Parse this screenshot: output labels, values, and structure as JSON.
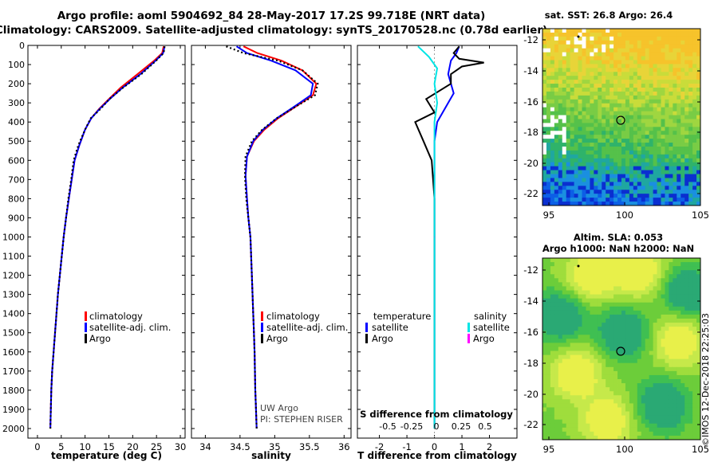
{
  "header": {
    "title_line1": "Argo profile: aoml 5904692_84 28-May-2017 17.2S 99.718E (NRT data)",
    "title_line2": "Climatology: CARS2009. Satellite-adjusted climatology: synTS_20170528.nc (0.78d earlier)"
  },
  "colors": {
    "climatology": "#ff0000",
    "satellite": "#0000ff",
    "argo": "#000000",
    "sat_cyan": "#00e5e5",
    "argo_magenta": "#ff00ff"
  },
  "depth_axis": {
    "ylim": [
      0,
      2050
    ],
    "ticks": [
      0,
      100,
      200,
      300,
      400,
      500,
      600,
      700,
      800,
      900,
      1000,
      1100,
      1200,
      1300,
      1400,
      1500,
      1600,
      1700,
      1800,
      1900,
      2000
    ]
  },
  "chart_data": [
    {
      "type": "line",
      "id": "temperature",
      "xlabel": "temperature (deg C)",
      "xlim": [
        -2,
        31
      ],
      "xticks": [
        0,
        5,
        10,
        15,
        20,
        25,
        30
      ],
      "ylabel": "depth",
      "ylim": [
        0,
        2050
      ],
      "legend": {
        "placement": "lower-center",
        "entries": [
          "climatology",
          "satellite-adj. clim.",
          "Argo"
        ]
      },
      "series": [
        {
          "name": "climatology",
          "color": "#ff0000",
          "x": [
            26.5,
            26.2,
            24.5,
            21,
            17.5,
            15,
            13,
            11.3,
            10,
            8.8,
            7.8,
            7.2,
            6.6,
            6,
            5.5,
            5.1,
            4.7,
            4.3,
            4,
            3.7,
            3.4,
            3.1,
            2.9,
            2.7
          ],
          "y": [
            5,
            40,
            80,
            150,
            220,
            280,
            330,
            380,
            440,
            520,
            600,
            700,
            800,
            900,
            1000,
            1100,
            1200,
            1300,
            1400,
            1500,
            1600,
            1700,
            1800,
            2000
          ]
        },
        {
          "name": "satellite-adj. clim.",
          "color": "#0000ff",
          "x": [
            26.7,
            26.4,
            24.8,
            21.6,
            17.9,
            15.2,
            13.1,
            11.3,
            10,
            8.8,
            7.8,
            7.2,
            6.6,
            6,
            5.5,
            5.1,
            4.7,
            4.3,
            4,
            3.7,
            3.4,
            3.1,
            2.9,
            2.7
          ],
          "y": [
            5,
            40,
            80,
            150,
            220,
            280,
            330,
            380,
            440,
            520,
            600,
            700,
            800,
            900,
            1000,
            1100,
            1200,
            1300,
            1400,
            1500,
            1600,
            1700,
            1800,
            2000
          ]
        },
        {
          "name": "Argo",
          "color": "#000000",
          "x": [
            26.7,
            26.5,
            24.9,
            21.8,
            18,
            15.1,
            13.3,
            11.2,
            10,
            8.6,
            7.6,
            7.1,
            6.5,
            6,
            5.5,
            5.1,
            4.7,
            4.3,
            4,
            3.7,
            3.4,
            3.1,
            2.9,
            2.7
          ],
          "y": [
            5,
            40,
            80,
            150,
            220,
            280,
            330,
            380,
            440,
            520,
            600,
            700,
            800,
            900,
            1000,
            1100,
            1200,
            1300,
            1400,
            1500,
            1600,
            1700,
            1800,
            2000
          ]
        }
      ]
    },
    {
      "type": "line",
      "id": "salinity",
      "xlabel": "salinity",
      "xlim": [
        33.8,
        36.1
      ],
      "xticks": [
        34,
        34.5,
        35,
        35.5,
        36
      ],
      "ylim": [
        0,
        2050
      ],
      "legend": {
        "placement": "lower-center",
        "entries": [
          "climatology",
          "satellite-adj. clim.",
          "Argo"
        ]
      },
      "annotations": [
        "UW Argo",
        "PI: STEPHEN RISER"
      ],
      "series": [
        {
          "name": "climatology",
          "color": "#ff0000",
          "x": [
            34.55,
            34.75,
            35.1,
            35.4,
            35.6,
            35.55,
            35.3,
            35.05,
            34.85,
            34.7,
            34.6,
            34.58,
            34.6,
            34.62,
            34.65,
            34.67,
            34.69,
            34.7,
            34.71,
            34.72,
            34.73,
            34.74
          ],
          "y": [
            5,
            40,
            80,
            130,
            200,
            260,
            320,
            380,
            440,
            500,
            580,
            680,
            800,
            900,
            1000,
            1200,
            1400,
            1500,
            1600,
            1800,
            1900,
            2000
          ]
        },
        {
          "name": "satellite-adj. clim.",
          "color": "#0000ff",
          "x": [
            34.45,
            34.6,
            34.95,
            35.3,
            35.55,
            35.52,
            35.28,
            35.03,
            34.83,
            34.69,
            34.6,
            34.58,
            34.6,
            34.62,
            34.65,
            34.67,
            34.69,
            34.7,
            34.71,
            34.72,
            34.73,
            34.74
          ],
          "y": [
            5,
            40,
            80,
            130,
            200,
            260,
            320,
            380,
            440,
            500,
            580,
            680,
            800,
            900,
            1000,
            1200,
            1400,
            1500,
            1600,
            1800,
            1900,
            2000
          ]
        },
        {
          "name": "Argo",
          "color": "#000000",
          "x": [
            34.3,
            34.55,
            35.05,
            35.4,
            35.62,
            35.58,
            35.3,
            35.03,
            34.82,
            34.67,
            34.58,
            34.57,
            34.59,
            34.62,
            34.65,
            34.67,
            34.69,
            34.7,
            34.71,
            34.72,
            34.73,
            34.74
          ],
          "y": [
            5,
            40,
            80,
            130,
            200,
            260,
            320,
            380,
            440,
            500,
            580,
            680,
            800,
            900,
            1000,
            1200,
            1400,
            1500,
            1600,
            1800,
            1900,
            2000
          ]
        }
      ]
    },
    {
      "type": "line",
      "id": "difference",
      "xlabel": "T difference from climatology",
      "xlim": [
        -2.8,
        3.0
      ],
      "xticks": [
        -2,
        -1,
        0,
        1,
        2
      ],
      "x2label": "S difference from climatology",
      "x2ticks": [
        "-0.5",
        "-0.25",
        "0",
        "0.25",
        "0.5"
      ],
      "ylim": [
        0,
        2050
      ],
      "legend": {
        "placement": "lower-center",
        "groups": [
          {
            "heading": "temperature",
            "entries": [
              "satellite",
              "Argo"
            ]
          },
          {
            "heading": "salinity",
            "entries": [
              "satellite",
              "Argo"
            ]
          }
        ]
      },
      "series": [
        {
          "name": "temperature satellite",
          "color": "#0000ff",
          "x": [
            0.9,
            0.8,
            0.6,
            0.5,
            0.7,
            0.5,
            0.1,
            0,
            0,
            0,
            0
          ],
          "y": [
            5,
            40,
            80,
            150,
            250,
            300,
            400,
            500,
            700,
            1000,
            2000
          ]
        },
        {
          "name": "temperature Argo",
          "color": "#000000",
          "x": [
            0.9,
            0.7,
            0.9,
            1.8,
            1.0,
            0.6,
            0.6,
            -0.3,
            0,
            -0.7,
            -0.4,
            -0.1,
            0,
            0,
            0
          ],
          "y": [
            5,
            40,
            70,
            90,
            110,
            150,
            200,
            280,
            350,
            400,
            500,
            600,
            800,
            1000,
            2000
          ]
        },
        {
          "name": "salinity satellite",
          "color": "#00e5e5",
          "x": [
            -0.6,
            -0.2,
            0.1,
            0,
            0.1,
            0,
            0
          ],
          "y": [
            5,
            60,
            120,
            200,
            300,
            400,
            2000
          ]
        },
        {
          "name": "salinity Argo",
          "color": "#ff00ff",
          "x": [
            0,
            0
          ],
          "y": [
            1000,
            1001
          ]
        }
      ]
    }
  ],
  "maps": {
    "sst": {
      "title": "sat. SST: 26.8 Argo: 26.4",
      "xticks": [
        "95",
        "100",
        "105"
      ],
      "yticks": [
        "-12",
        "-14",
        "-16",
        "-18",
        "-20",
        "-22"
      ]
    },
    "sla": {
      "title_line1": "Altim. SLA: 0.053",
      "title_line2": "Argo h1000: NaN h2000: NaN",
      "xticks": [
        "95",
        "100",
        "105"
      ],
      "yticks": [
        "-12",
        "-14",
        "-16",
        "-18",
        "-20",
        "-22"
      ]
    }
  },
  "footer": {
    "stamp": "©IMOS 12-Dec-2018 22:25:03"
  }
}
